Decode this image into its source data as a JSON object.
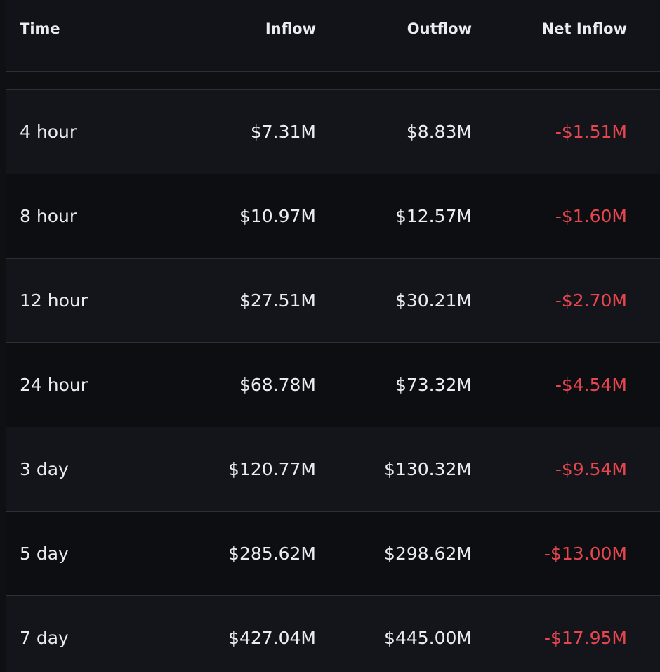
{
  "table": {
    "header": [
      "Time",
      "Inflow",
      "Outflow",
      "Net Inflow"
    ],
    "rows": [
      [
        "4 hour",
        "$7.31M",
        "$8.83M",
        "-$1.51M"
      ],
      [
        "8 hour",
        "$10.97M",
        "$12.57M",
        "-$1.60M"
      ],
      [
        "12 hour",
        "$27.51M",
        "$30.21M",
        "-$2.70M"
      ],
      [
        "24 hour",
        "$68.78M",
        "$73.32M",
        "-$4.54M"
      ],
      [
        "3 day",
        "$120.77M",
        "$130.32M",
        "-$9.54M"
      ],
      [
        "5 day",
        "$285.62M",
        "$298.62M",
        "-$13.00M"
      ],
      [
        "7 day",
        "$427.04M",
        "$445.00M",
        "-$17.95M"
      ]
    ]
  }
}
